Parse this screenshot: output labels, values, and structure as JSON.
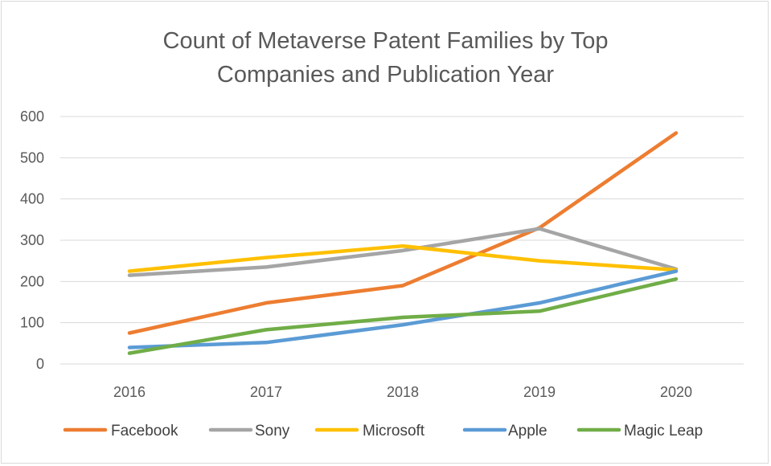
{
  "chart_data": {
    "type": "line",
    "title_lines": [
      "Count of Metaverse Patent Families by Top",
      "Companies and Publication Year"
    ],
    "categories": [
      "2016",
      "2017",
      "2018",
      "2019",
      "2020"
    ],
    "ylim": [
      0,
      600
    ],
    "yticks": [
      0,
      100,
      200,
      300,
      400,
      500,
      600
    ],
    "grid": true,
    "legend_position": "bottom",
    "series": [
      {
        "name": "Facebook",
        "color": "#ed7d31",
        "values": [
          75,
          148,
          190,
          330,
          560
        ]
      },
      {
        "name": "Sony",
        "color": "#a5a5a5",
        "values": [
          215,
          235,
          275,
          328,
          230
        ]
      },
      {
        "name": "Microsoft",
        "color": "#ffc000",
        "values": [
          225,
          258,
          286,
          250,
          228
        ]
      },
      {
        "name": "Apple",
        "color": "#5b9bd5",
        "values": [
          40,
          52,
          95,
          148,
          225
        ]
      },
      {
        "name": "Magic Leap",
        "color": "#70ad47",
        "values": [
          26,
          83,
          113,
          128,
          206
        ]
      }
    ]
  }
}
